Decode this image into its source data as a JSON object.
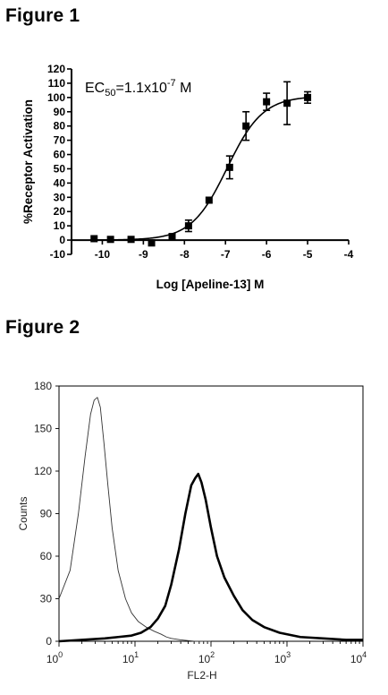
{
  "figures": [
    {
      "title": "Figure 1"
    },
    {
      "title": "Figure 2"
    }
  ],
  "chart_data": [
    {
      "type": "scatter",
      "annotation": {
        "prefix": "EC",
        "sub": "50",
        "mid": "=1.1x10",
        "sup": "-7",
        "suffix": " M"
      },
      "xlabel": "Log [Apeline-13] M",
      "ylabel": "%Receptor Activation",
      "xlim": [
        -10.75,
        -4
      ],
      "ylim": [
        -10,
        120
      ],
      "xticks": [
        -10,
        -9,
        -8,
        -7,
        -6,
        -5,
        -4
      ],
      "yticks": [
        -10,
        0,
        10,
        20,
        30,
        40,
        50,
        60,
        70,
        80,
        90,
        100,
        110,
        120
      ],
      "grid": false,
      "points": [
        {
          "x": -10.2,
          "y": 1,
          "err": 0
        },
        {
          "x": -9.8,
          "y": 0.5,
          "err": 0
        },
        {
          "x": -9.3,
          "y": 0.5,
          "err": 0
        },
        {
          "x": -8.8,
          "y": -2,
          "err": 0
        },
        {
          "x": -8.3,
          "y": 2.5,
          "err": 0
        },
        {
          "x": -7.9,
          "y": 10,
          "err": 4
        },
        {
          "x": -7.4,
          "y": 28,
          "err": 0
        },
        {
          "x": -6.9,
          "y": 51,
          "err": 8
        },
        {
          "x": -6.5,
          "y": 80,
          "err": 10
        },
        {
          "x": -6.0,
          "y": 97,
          "err": 6
        },
        {
          "x": -5.5,
          "y": 96,
          "err": 15
        },
        {
          "x": -5.0,
          "y": 100,
          "err": 4
        }
      ],
      "fit": {
        "type": "sigmoid",
        "bottom": 0,
        "top": 101,
        "log_ec50": -6.96,
        "hill": 1.0
      }
    },
    {
      "type": "line",
      "xlabel": "FL2-H",
      "ylabel": "Counts",
      "x_scale": "log",
      "xlim": [
        1,
        10000
      ],
      "ylim": [
        0,
        180
      ],
      "xtick_labels": [
        {
          "base": "10",
          "exp": "0"
        },
        {
          "base": "10",
          "exp": "1"
        },
        {
          "base": "10",
          "exp": "2"
        },
        {
          "base": "10",
          "exp": "3"
        },
        {
          "base": "10",
          "exp": "4"
        }
      ],
      "yticks": [
        0,
        30,
        60,
        90,
        120,
        150,
        180
      ],
      "series": [
        {
          "style": "thin",
          "x": [
            1.0,
            1.4,
            1.8,
            2.2,
            2.6,
            2.9,
            3.2,
            3.5,
            3.9,
            4.4,
            5.0,
            6.0,
            7.5,
            9.0,
            11,
            14,
            18,
            22,
            26,
            30,
            40,
            60,
            100
          ],
          "y": [
            30,
            50,
            90,
            130,
            160,
            170,
            172,
            165,
            140,
            110,
            80,
            50,
            30,
            20,
            14,
            10,
            7,
            5,
            3,
            2,
            1,
            0,
            0
          ]
        },
        {
          "style": "thick",
          "x": [
            1,
            2,
            4,
            6,
            9,
            12,
            16,
            20,
            25,
            30,
            38,
            46,
            55,
            62,
            68,
            75,
            85,
            100,
            120,
            150,
            200,
            260,
            350,
            500,
            800,
            1500,
            3000,
            6000,
            10000
          ],
          "y": [
            0,
            1,
            2,
            3,
            4,
            6,
            10,
            16,
            25,
            40,
            65,
            90,
            110,
            115,
            118,
            112,
            100,
            80,
            60,
            45,
            32,
            22,
            15,
            10,
            6,
            3,
            2,
            1,
            1
          ]
        }
      ]
    }
  ]
}
